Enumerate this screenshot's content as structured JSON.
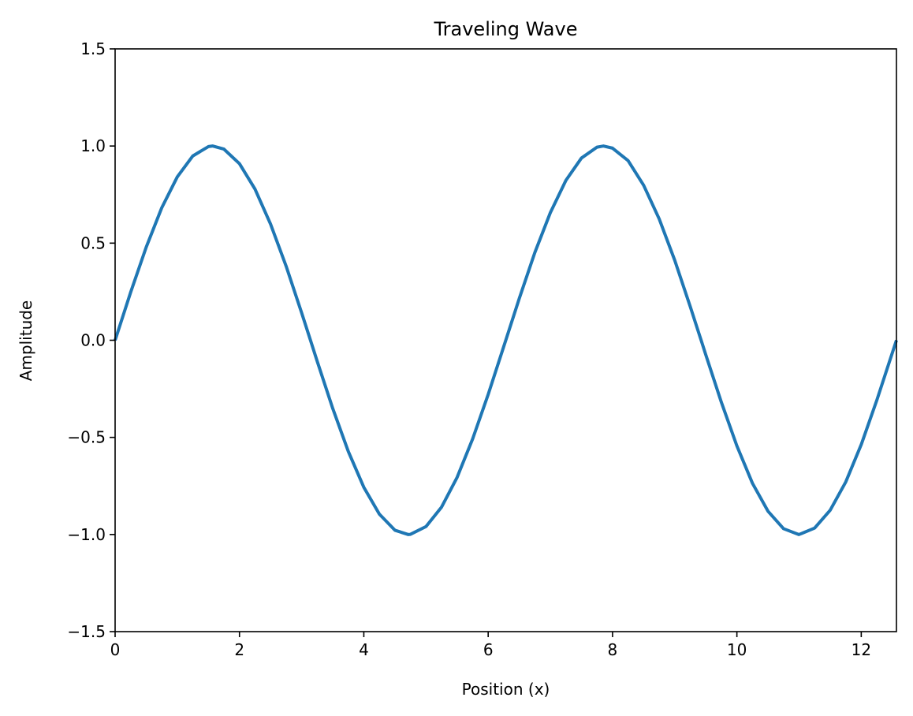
{
  "chart_data": {
    "type": "line",
    "title": "Traveling Wave",
    "xlabel": "Position (x)",
    "ylabel": "Amplitude",
    "xlim": [
      0,
      12.566
    ],
    "ylim": [
      -1.5,
      1.5
    ],
    "grid": false,
    "x_ticks": [
      0,
      2,
      4,
      6,
      8,
      10,
      12
    ],
    "x_tick_labels": [
      "0",
      "2",
      "4",
      "6",
      "8",
      "10",
      "12"
    ],
    "y_ticks": [
      -1.5,
      -1.0,
      -0.5,
      0.0,
      0.5,
      1.0,
      1.5
    ],
    "y_tick_labels": [
      "−1.5",
      "−1.0",
      "−0.5",
      "0.0",
      "0.5",
      "1.0",
      "1.5"
    ],
    "series": [
      {
        "color": "#1f77b4",
        "x": [
          0,
          0.25,
          0.5,
          0.75,
          1.0,
          1.25,
          1.5,
          1.571,
          1.75,
          2.0,
          2.25,
          2.5,
          2.75,
          3.0,
          3.142,
          3.25,
          3.5,
          3.75,
          4.0,
          4.25,
          4.5,
          4.712,
          4.75,
          5.0,
          5.25,
          5.5,
          5.75,
          6.0,
          6.283,
          6.5,
          6.75,
          7.0,
          7.25,
          7.5,
          7.75,
          7.854,
          8.0,
          8.25,
          8.5,
          8.75,
          9.0,
          9.25,
          9.425,
          9.5,
          9.75,
          10.0,
          10.25,
          10.5,
          10.75,
          10.996,
          11.0,
          11.25,
          11.5,
          11.75,
          12.0,
          12.25,
          12.566
        ],
        "y": [
          0.0,
          0.247,
          0.479,
          0.682,
          0.841,
          0.949,
          0.997,
          1.0,
          0.984,
          0.909,
          0.778,
          0.598,
          0.382,
          0.141,
          0.0,
          -0.108,
          -0.351,
          -0.572,
          -0.757,
          -0.895,
          -0.978,
          -1.0,
          -0.999,
          -0.959,
          -0.859,
          -0.706,
          -0.508,
          -0.279,
          0.0,
          0.215,
          0.451,
          0.657,
          0.823,
          0.938,
          0.994,
          1.0,
          0.989,
          0.925,
          0.798,
          0.625,
          0.412,
          0.173,
          0.0,
          -0.075,
          -0.319,
          -0.544,
          -0.736,
          -0.88,
          -0.97,
          -1.0,
          -1.0,
          -0.967,
          -0.875,
          -0.73,
          -0.537,
          -0.309,
          0.0
        ]
      }
    ]
  }
}
